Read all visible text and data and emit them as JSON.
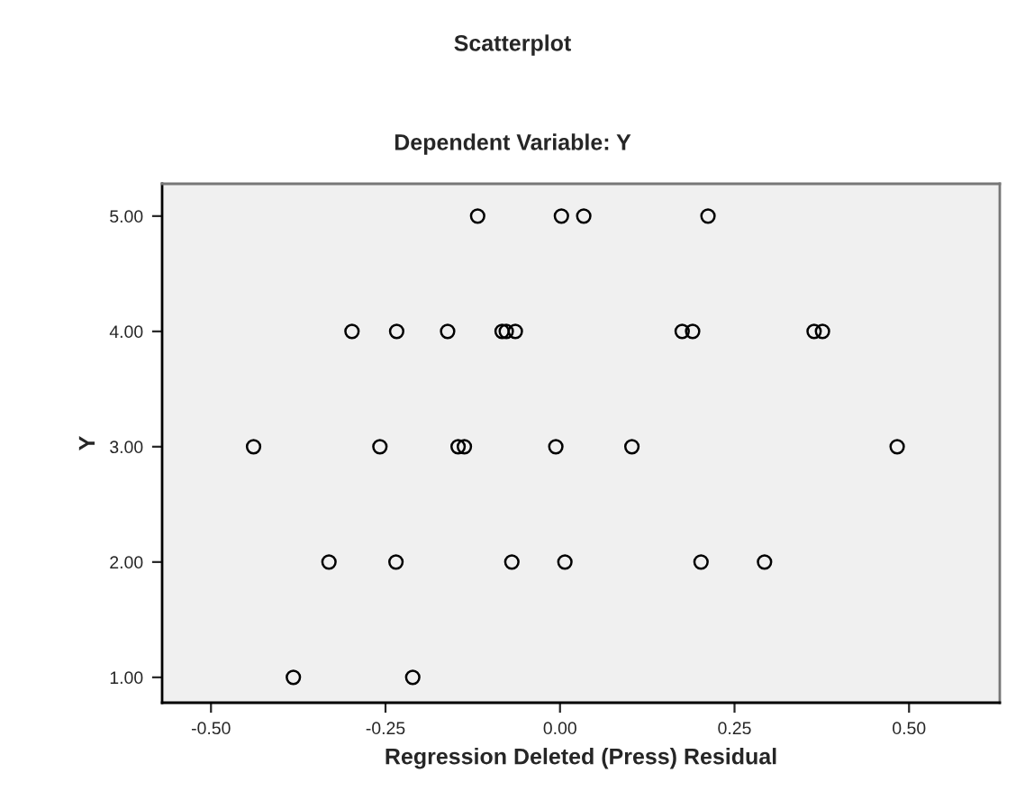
{
  "chart_data": {
    "type": "scatter",
    "title": "Scatterplot",
    "subtitle": "Dependent Variable: Y",
    "xlabel": "Regression Deleted (Press) Residual",
    "ylabel": "Y",
    "x": [
      -0.118,
      0.002,
      0.034,
      0.212,
      -0.298,
      -0.234,
      -0.161,
      -0.083,
      -0.077,
      -0.064,
      0.175,
      0.19,
      0.364,
      0.376,
      -0.439,
      -0.258,
      -0.146,
      -0.137,
      -0.006,
      0.103,
      0.483,
      -0.331,
      -0.235,
      -0.069,
      0.007,
      0.202,
      0.293,
      -0.382,
      -0.211
    ],
    "values": [
      5,
      5,
      5,
      5,
      4,
      4,
      4,
      4,
      4,
      4,
      4,
      4,
      4,
      4,
      3,
      3,
      3,
      3,
      3,
      3,
      3,
      2,
      2,
      2,
      2,
      2,
      2,
      1,
      1
    ],
    "color": "#000000",
    "marker": "circle",
    "xlim": [
      -0.57,
      0.63
    ],
    "ylim": [
      0.78,
      5.28
    ],
    "xticks": [
      {
        "value": -0.5,
        "label": "-0.50"
      },
      {
        "value": -0.25,
        "label": "-0.25"
      },
      {
        "value": 0,
        "label": "0.00"
      },
      {
        "value": 0.25,
        "label": "0.25"
      },
      {
        "value": 0.5,
        "label": "0.50"
      }
    ],
    "yticks": [
      {
        "value": 1,
        "label": "1.00"
      },
      {
        "value": 2,
        "label": "2.00"
      },
      {
        "value": 3,
        "label": "3.00"
      },
      {
        "value": 4,
        "label": "4.00"
      },
      {
        "value": 5,
        "label": "5.00"
      }
    ],
    "grid": false,
    "legend": false
  }
}
